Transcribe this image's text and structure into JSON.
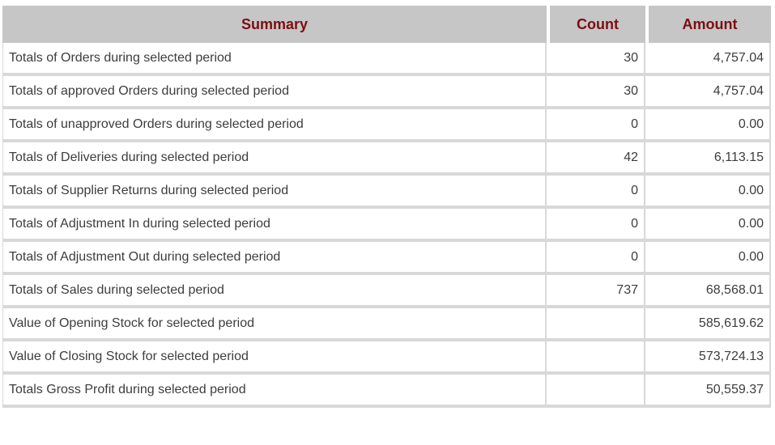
{
  "table": {
    "columns": [
      {
        "key": "summary",
        "label": "Summary"
      },
      {
        "key": "count",
        "label": "Count"
      },
      {
        "key": "amount",
        "label": "Amount"
      }
    ],
    "rows": [
      {
        "summary": "Totals of Orders during selected period",
        "count": "30",
        "amount": "4,757.04"
      },
      {
        "summary": "Totals of approved Orders during selected period",
        "count": "30",
        "amount": "4,757.04"
      },
      {
        "summary": "Totals of unapproved Orders during selected period",
        "count": "0",
        "amount": "0.00"
      },
      {
        "summary": "Totals of Deliveries during selected period",
        "count": "42",
        "amount": "6,113.15"
      },
      {
        "summary": "Totals of Supplier Returns during selected period",
        "count": "0",
        "amount": "0.00"
      },
      {
        "summary": "Totals of Adjustment In during selected period",
        "count": "0",
        "amount": "0.00"
      },
      {
        "summary": "Totals of Adjustment Out during selected period",
        "count": "0",
        "amount": "0.00"
      },
      {
        "summary": "Totals of Sales during selected period",
        "count": "737",
        "amount": "68,568.01"
      },
      {
        "summary": "Value of Opening Stock for selected period",
        "count": "",
        "amount": "585,619.62"
      },
      {
        "summary": "Value of Closing Stock for selected period",
        "count": "",
        "amount": "573,724.13"
      },
      {
        "summary": "Totals Gross Profit during selected period",
        "count": "",
        "amount": "50,559.37"
      }
    ]
  },
  "colors": {
    "header_bg": "#c6c6c6",
    "header_text": "#7c0d12",
    "body_text": "#3d3d3d",
    "border": "#d8d8d8"
  }
}
